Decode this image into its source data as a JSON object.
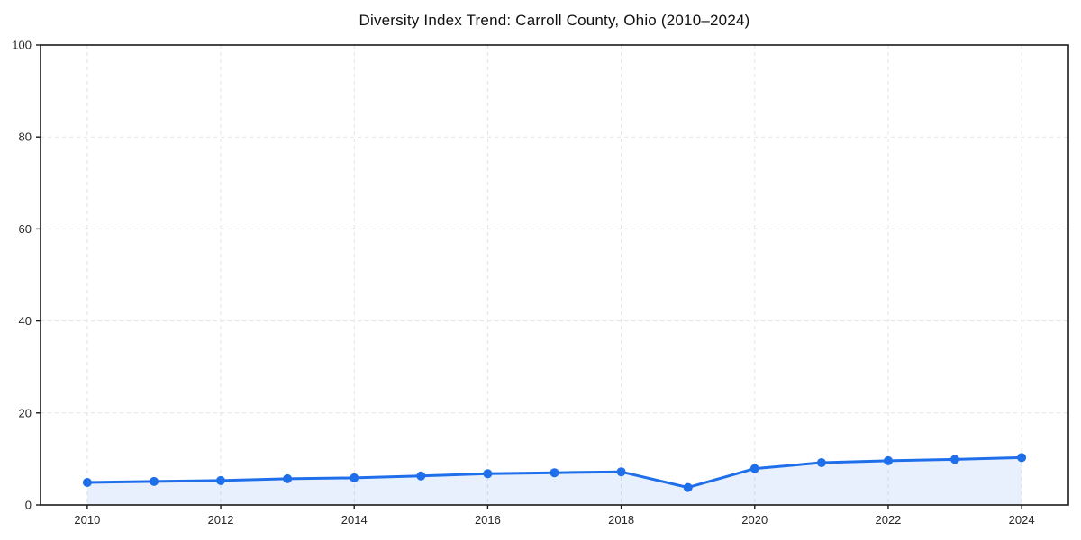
{
  "title": "Diversity Index Trend: Carroll County, Ohio (2010–2024)",
  "chart_data": {
    "type": "area",
    "title": "Diversity Index Trend: Carroll County, Ohio (2010–2024)",
    "series_name": "Diversity Index",
    "x": [
      2010,
      2011,
      2012,
      2013,
      2014,
      2015,
      2016,
      2017,
      2018,
      2019,
      2020,
      2021,
      2022,
      2023,
      2024
    ],
    "values": [
      4.9,
      5.1,
      5.3,
      5.7,
      5.9,
      6.3,
      6.8,
      7.0,
      7.2,
      3.8,
      7.9,
      9.2,
      9.6,
      9.9,
      10.3
    ],
    "xlabel": "",
    "ylabel": "",
    "xlim": [
      2009.3,
      2024.7
    ],
    "ylim": [
      0,
      100
    ],
    "x_ticks": [
      2010,
      2012,
      2014,
      2016,
      2018,
      2020,
      2022,
      2024
    ],
    "y_ticks": [
      0,
      20,
      40,
      60,
      80,
      100
    ],
    "grid": true,
    "grid_style": "dashed",
    "legend": false,
    "colors": {
      "line": "#1f6feb",
      "marker": "#1f6feb",
      "fill": "rgba(31, 111, 235, 0.10)",
      "grid": "#e3e3e3",
      "spine": "#1a1a1a",
      "tick_label": "#262626",
      "title": "#111111",
      "background": "#ffffff"
    }
  }
}
